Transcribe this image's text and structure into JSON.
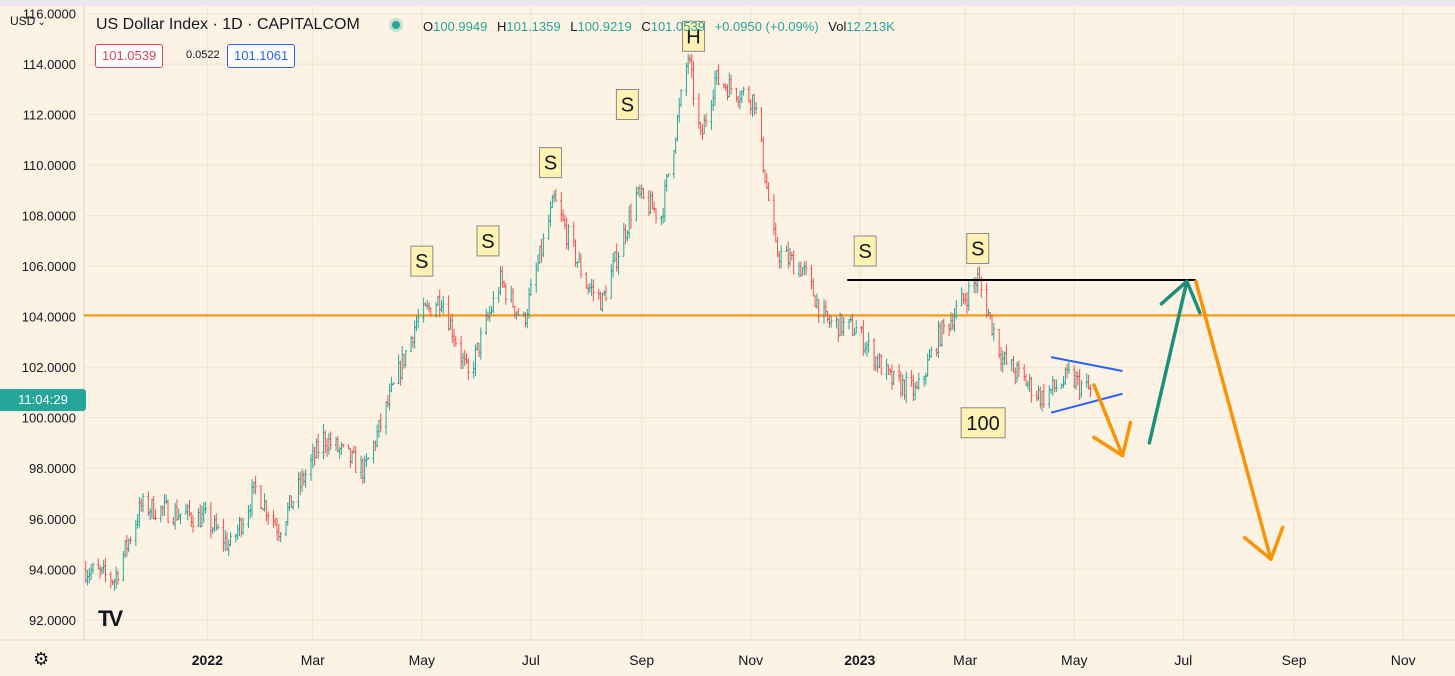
{
  "header": {
    "currency": "USD",
    "symbol_title": "US Dollar Index · 1D · CAPITALCOM",
    "ohlc": {
      "o_label": "O",
      "o": "100.9949",
      "h_label": "H",
      "h": "101.1359",
      "l_label": "L",
      "l": "100.9219",
      "c_label": "C",
      "c": "101.0539",
      "change": "+0.0950 (+0.09%)",
      "vol_label": "Vol",
      "vol": "12.213K"
    },
    "bid": "101.0539",
    "spread": "0.0522",
    "ask": "101.1061"
  },
  "countdown": "11:04:29",
  "colors": {
    "background": "#fdf3e4",
    "up": "#26a69a",
    "down": "#ef5350",
    "support_line": "#f89406",
    "projection_down": "#f89406",
    "projection_up": "#1e8f7a",
    "wedge": "#2962ff",
    "neckline": "#000000",
    "label_box": "#fff2b3"
  },
  "icons": {
    "settings": "gear-icon",
    "logo": "tradingview-logo-icon"
  },
  "chart_data": {
    "type": "candlestick",
    "title": "US Dollar Index · 1D · CAPITALCOM",
    "y_axis_labels": [
      "116.0000",
      "114.0000",
      "112.0000",
      "110.0000",
      "108.0000",
      "106.0000",
      "104.0000",
      "102.0000",
      "100.0000",
      "98.0000",
      "96.0000",
      "94.0000",
      "92.0000"
    ],
    "y_ticks": [
      116,
      114,
      112,
      110,
      108,
      106,
      104,
      102,
      100,
      98,
      96,
      94,
      92
    ],
    "ylim": [
      91.2,
      116.3
    ],
    "x_axis_labels": [
      "2022",
      "Mar",
      "May",
      "Jul",
      "Sep",
      "Nov",
      "2023",
      "Mar",
      "May",
      "Jul",
      "Sep",
      "Nov"
    ],
    "x_ticks": [
      "2022-01-01",
      "2022-03-01",
      "2022-05-01",
      "2022-07-01",
      "2022-09-01",
      "2022-11-01",
      "2023-01-01",
      "2023-03-01",
      "2023-05-01",
      "2023-07-01",
      "2023-09-01",
      "2023-11-01"
    ],
    "x_range": [
      "2021-10-24",
      "2023-11-30"
    ],
    "price_path": [
      [
        "2021-10-25",
        94.0
      ],
      [
        "2021-11-10",
        93.6
      ],
      [
        "2021-11-25",
        96.5
      ],
      [
        "2021-12-10",
        96.3
      ],
      [
        "2021-12-31",
        96.0
      ],
      [
        "2022-01-14",
        94.9
      ],
      [
        "2022-01-28",
        97.2
      ],
      [
        "2022-02-10",
        95.6
      ],
      [
        "2022-03-07",
        99.2
      ],
      [
        "2022-03-30",
        97.9
      ],
      [
        "2022-04-28",
        103.8
      ],
      [
        "2022-05-12",
        104.8
      ],
      [
        "2022-05-27",
        101.6
      ],
      [
        "2022-06-14",
        105.4
      ],
      [
        "2022-06-27",
        103.8
      ],
      [
        "2022-07-14",
        108.6
      ],
      [
        "2022-08-01",
        105.3
      ],
      [
        "2022-08-10",
        104.6
      ],
      [
        "2022-08-29",
        108.8
      ],
      [
        "2022-09-12",
        108.0
      ],
      [
        "2022-09-27",
        114.3
      ],
      [
        "2022-10-04",
        111.0
      ],
      [
        "2022-10-12",
        113.4
      ],
      [
        "2022-11-03",
        112.6
      ],
      [
        "2022-11-15",
        106.6
      ],
      [
        "2022-11-30",
        105.9
      ],
      [
        "2022-12-13",
        103.8
      ],
      [
        "2022-12-30",
        103.5
      ],
      [
        "2023-01-18",
        101.5
      ],
      [
        "2023-02-02",
        101.0
      ],
      [
        "2023-02-14",
        103.2
      ],
      [
        "2023-03-08",
        105.5
      ],
      [
        "2023-03-22",
        102.3
      ],
      [
        "2023-04-13",
        100.8
      ],
      [
        "2023-04-28",
        101.6
      ],
      [
        "2023-05-10",
        101.05
      ]
    ],
    "last_close": 101.0539,
    "grid": true,
    "horizontal_lines": [
      {
        "name": "support",
        "y": 104.05,
        "color": "#f89406"
      }
    ],
    "neckline": {
      "x": [
        "2022-12-25",
        "2023-07-08"
      ],
      "y": [
        105.45,
        105.45
      ]
    },
    "wedge": [
      {
        "x": [
          "2023-04-18",
          "2023-05-28"
        ],
        "y": [
          102.4,
          101.85
        ]
      },
      {
        "x": [
          "2023-04-18",
          "2023-05-28"
        ],
        "y": [
          100.2,
          100.95
        ]
      }
    ],
    "projections": [
      {
        "color": "#f89406",
        "points": [
          [
            "2023-05-12",
            101.3
          ],
          [
            "2023-05-28",
            98.5
          ]
        ],
        "arrow": true
      },
      {
        "color": "#1e8f7a",
        "points": [
          [
            "2023-06-12",
            99.0
          ],
          [
            "2023-07-03",
            105.4
          ]
        ],
        "arrow": true
      },
      {
        "color": "#f89406",
        "points": [
          [
            "2023-07-08",
            105.4
          ],
          [
            "2023-08-19",
            94.4
          ]
        ],
        "arrow": true
      }
    ],
    "annotations": [
      {
        "text": "S",
        "x": "2022-05-01",
        "y": 106.2
      },
      {
        "text": "S",
        "x": "2022-06-07",
        "y": 107.0
      },
      {
        "text": "S",
        "x": "2022-07-12",
        "y": 110.1
      },
      {
        "text": "S",
        "x": "2022-08-24",
        "y": 112.4
      },
      {
        "text": "H",
        "x": "2022-09-30",
        "y": 115.1
      },
      {
        "text": "S",
        "x": "2023-01-04",
        "y": 106.6
      },
      {
        "text": "S",
        "x": "2023-03-08",
        "y": 106.7
      },
      {
        "text": "100",
        "x": "2023-03-11",
        "y": 99.8
      }
    ]
  }
}
